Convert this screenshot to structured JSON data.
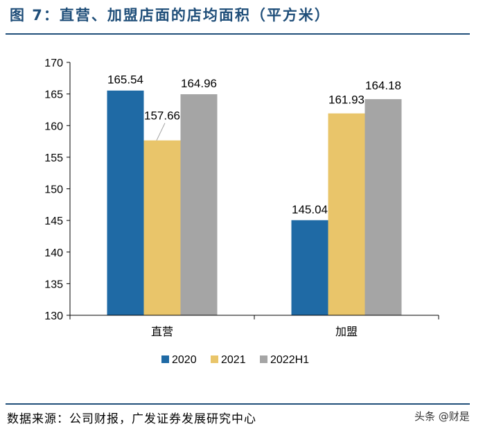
{
  "figure": {
    "title": "图 7：直营、加盟店面的店均面积（平方米）",
    "source": "数据来源：公司财报，广发证券发展研究中心",
    "watermark": "头条 @财是"
  },
  "colors": {
    "title": "#1f4e79",
    "series_2020": "#1f6aa5",
    "series_2021": "#e9c56a",
    "series_2022H1": "#a5a5a5"
  },
  "chart_data": {
    "type": "bar",
    "title": "",
    "xlabel": "",
    "ylabel": "",
    "categories": [
      "直营",
      "加盟"
    ],
    "ylim": [
      130,
      170
    ],
    "yticks": [
      130,
      135,
      140,
      145,
      150,
      155,
      160,
      165,
      170
    ],
    "grid": false,
    "legend": "bottom",
    "series": [
      {
        "name": "2020",
        "values": [
          165.54,
          145.04
        ],
        "labels": [
          "165.54",
          "145.04"
        ]
      },
      {
        "name": "2021",
        "values": [
          157.66,
          161.93
        ],
        "labels": [
          "157.66",
          "161.93"
        ]
      },
      {
        "name": "2022H1",
        "values": [
          164.96,
          164.18
        ],
        "labels": [
          "164.96",
          "164.18"
        ]
      }
    ]
  }
}
